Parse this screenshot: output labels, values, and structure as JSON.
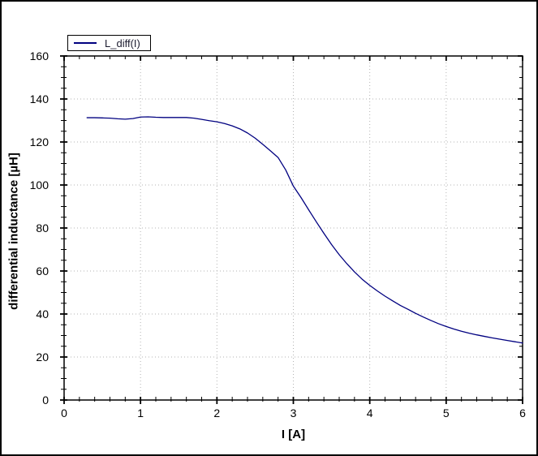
{
  "window": {
    "background": "#ffffff",
    "border_color": "#000000"
  },
  "colors": {
    "curve": "#000080",
    "grid": "#b3b3b3",
    "axis": "#000000",
    "legend_text": "#1a1a2e"
  },
  "chart_data": {
    "type": "line",
    "title": "",
    "xlabel": "I [A]",
    "ylabel": "differential inductance [µH]",
    "xlim": [
      0,
      6
    ],
    "ylim": [
      0,
      160
    ],
    "xticks": [
      0,
      1,
      2,
      3,
      4,
      5,
      6
    ],
    "yticks": [
      0,
      20,
      40,
      60,
      80,
      100,
      120,
      140,
      160
    ],
    "x_minor_step": 0.2,
    "y_minor_step": 5,
    "grid": {
      "style": "dotted",
      "color": "#b3b3b3",
      "major_only": true
    },
    "legend": {
      "label": "L_diff(I)",
      "position": "top-left"
    },
    "series": [
      {
        "name": "L_diff(I)",
        "color": "#000080",
        "x": [
          0.3,
          0.4,
          0.5,
          0.6,
          0.7,
          0.8,
          0.9,
          1.0,
          1.1,
          1.2,
          1.3,
          1.4,
          1.5,
          1.6,
          1.7,
          1.8,
          1.9,
          2.0,
          2.1,
          2.2,
          2.3,
          2.4,
          2.5,
          2.6,
          2.7,
          2.8,
          2.9,
          3.0,
          3.1,
          3.2,
          3.3,
          3.4,
          3.5,
          3.6,
          3.7,
          3.8,
          3.9,
          4.0,
          4.1,
          4.2,
          4.3,
          4.4,
          4.5,
          4.6,
          4.7,
          4.8,
          4.9,
          5.0,
          5.1,
          5.2,
          5.3,
          5.4,
          5.5,
          5.6,
          5.7,
          5.8,
          5.9,
          6.0
        ],
        "y": [
          131.3,
          131.3,
          131.2,
          131.1,
          130.8,
          130.6,
          130.9,
          131.6,
          131.7,
          131.5,
          131.4,
          131.4,
          131.4,
          131.4,
          131.1,
          130.5,
          129.9,
          129.4,
          128.6,
          127.5,
          126.1,
          124.2,
          121.8,
          118.9,
          115.9,
          112.8,
          107.0,
          99.5,
          94.2,
          88.5,
          82.9,
          77.5,
          72.3,
          67.6,
          63.4,
          59.6,
          56.2,
          53.3,
          50.7,
          48.3,
          46.1,
          44.0,
          42.2,
          40.3,
          38.6,
          37.0,
          35.5,
          34.2,
          33.0,
          32.0,
          31.1,
          30.3,
          29.6,
          28.9,
          28.3,
          27.7,
          27.1,
          26.5
        ]
      }
    ]
  }
}
